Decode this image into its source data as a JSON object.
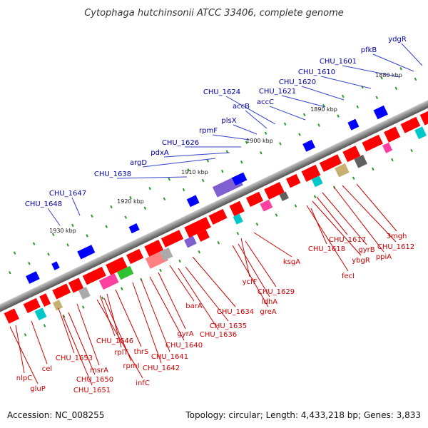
{
  "title": "Cytophaga hutchinsonii ATCC 33406, complete genome",
  "footer": {
    "accession": "Accession: NC_008255",
    "summary": "Topology: circular; Length: 4,433,218 bp; Genes: 3,833"
  },
  "scale_labels": [
    "1880 kbp",
    "1890 kbp",
    "1900 kbp",
    "1910 kbp",
    "1920 kbp",
    "1930 kbp"
  ],
  "upper_labels": [
    "ydgR",
    "pfkB",
    "CHU_1601",
    "CHU_1610",
    "CHU_1620",
    "CHU_1621",
    "accC",
    "CHU_1624",
    "accB",
    "plsX",
    "rpmF",
    "CHU_1626",
    "pdxA",
    "argD",
    "CHU_1638",
    "CHU_1647",
    "CHU_1648"
  ],
  "lower_labels": [
    "3mgh",
    "CHU_1612",
    "ppiA",
    "gyrB",
    "CHU_1617",
    "ybgR",
    "fecI",
    "CHU_1618",
    "ksgA",
    "ycfF",
    "CHU_1629",
    "ldhA",
    "greA",
    "CHU_1634",
    "barA",
    "CHU_1635",
    "CHU_1636",
    "gyrA",
    "CHU_1640",
    "CHU_1641",
    "CHU_1642",
    "thrS",
    "rplT",
    "CHU_1646",
    "rpmI",
    "infC",
    "msrA",
    "CHU_1653",
    "CHU_1650",
    "CHU_1651",
    "cel",
    "nlpC",
    "gluP"
  ],
  "colors": {
    "backbone": "#888888",
    "forward_gene": "#ff0000",
    "reverse_gene": "#0000ff",
    "upper_label": "#0000a0",
    "lower_label": "#cc0000",
    "tick": "#2a9a2a"
  }
}
